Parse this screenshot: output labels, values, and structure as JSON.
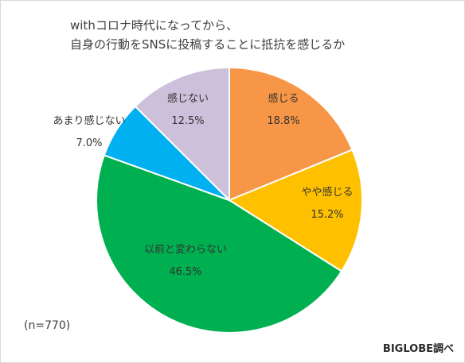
{
  "chart_data": {
    "type": "pie",
    "title": [
      "withコロナ時代になってから、",
      "自身の行動をSNSに投稿することに抵抗を感じるか"
    ],
    "note": "(n=770)",
    "source": "BIGLOBE調べ",
    "slices": [
      {
        "label": "感じる",
        "value": 18.8,
        "display": "18.8%",
        "color": "#F79646"
      },
      {
        "label": "やや感じる",
        "value": 15.2,
        "display": "15.2%",
        "color": "#FFC000"
      },
      {
        "label": "以前と変わらない",
        "value": 46.5,
        "display": "46.5%",
        "color": "#00B050"
      },
      {
        "label": "あまり感じない",
        "value": 7.0,
        "display": "7.0%",
        "color": "#00B0F0"
      },
      {
        "label": "感じない",
        "value": 12.5,
        "display": "12.5%",
        "color": "#CCC0DA"
      }
    ]
  }
}
